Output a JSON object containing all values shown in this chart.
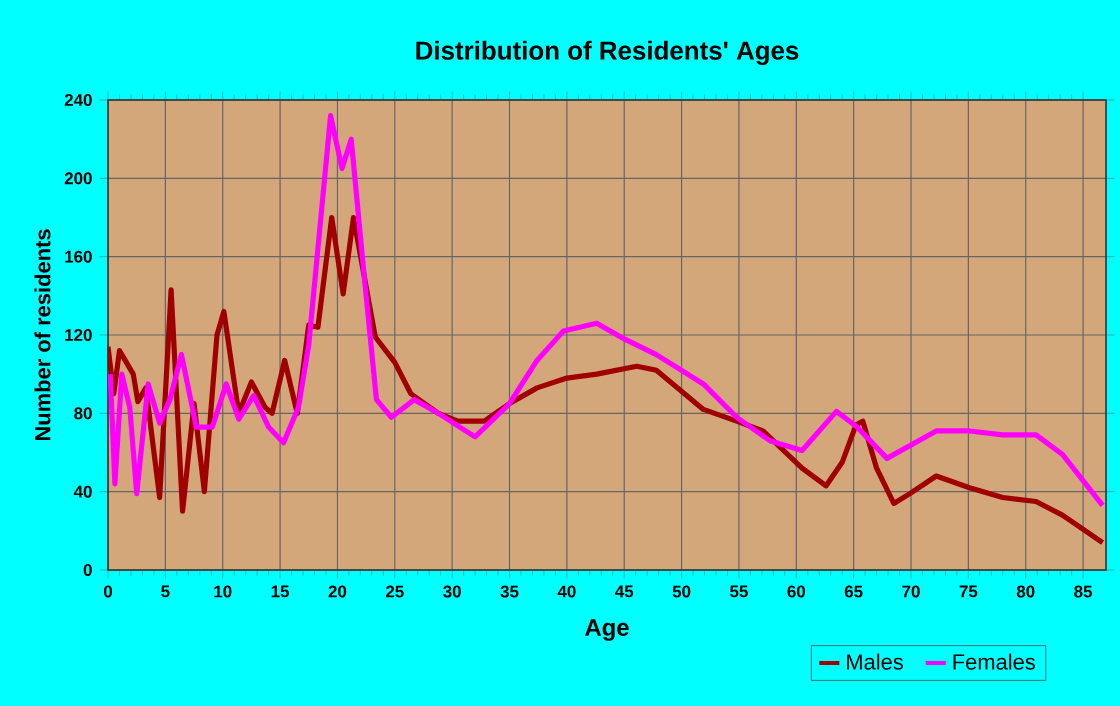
{
  "chart_data": {
    "type": "line",
    "title": "Distribution of Residents' Ages",
    "xlabel": "Age",
    "ylabel": "Number of residents",
    "xlim": [
      0,
      87
    ],
    "xticks": [
      0,
      5,
      10,
      15,
      20,
      25,
      30,
      35,
      40,
      45,
      50,
      55,
      60,
      65,
      70,
      75,
      80,
      85
    ],
    "ylim": [
      0,
      240
    ],
    "yticks": [
      0,
      40,
      80,
      120,
      160,
      200,
      240
    ],
    "grid": true,
    "legend": "bottom right",
    "marker": "none",
    "line_style": "solid",
    "series": [
      {
        "name": "Males",
        "color": "#a00000",
        "x": [
          0,
          0.5,
          1,
          2.2,
          2.6,
          3.3,
          4.5,
          5.5,
          6.5,
          7.5,
          8.4,
          9.5,
          10.1,
          11.4,
          12.5,
          13.7,
          14.3,
          15.4,
          16.5,
          17.5,
          18.3,
          19.5,
          20.5,
          21.4,
          23.3,
          25,
          26.4,
          28.8,
          30.5,
          32.8,
          35,
          37.4,
          40,
          42.6,
          46.1,
          47.8,
          51.9,
          54.8,
          57.1,
          60.5,
          62.6,
          64,
          65.2,
          65.8,
          67,
          68.5,
          69.9,
          72.2,
          75.1,
          78,
          80.9,
          83.2,
          86.7
        ],
        "values": [
          114,
          90,
          112,
          100,
          86,
          93,
          37,
          143,
          30,
          85,
          40,
          120,
          132,
          80,
          96,
          83,
          80,
          107,
          80,
          125,
          124,
          180,
          141,
          180,
          119,
          106,
          90,
          80,
          76,
          76,
          85,
          93,
          98,
          100,
          104,
          102,
          82,
          76,
          71,
          52,
          43,
          55,
          74,
          76,
          52,
          34,
          39,
          48,
          42,
          37,
          35,
          28,
          14
        ]
      },
      {
        "name": "Females",
        "color": "#ff00ff",
        "x": [
          0.2,
          0.6,
          1.2,
          1.9,
          2.5,
          3.5,
          4.5,
          5.4,
          6.4,
          7.7,
          9.1,
          10.3,
          11.4,
          12.7,
          14,
          15.3,
          16.6,
          17.5,
          19.4,
          20.4,
          21.2,
          22.4,
          23.4,
          24.7,
          26.7,
          28.8,
          32,
          35,
          37.4,
          39.7,
          42.6,
          45,
          47.8,
          51.9,
          54.8,
          57.7,
          60.5,
          63.5,
          65.3,
          67.9,
          72.2,
          75.1,
          78,
          80.9,
          83.2,
          86.7
        ],
        "values": [
          100,
          44,
          100,
          83,
          39,
          95,
          75,
          87,
          110,
          73,
          73,
          95,
          77,
          89,
          73,
          65,
          83,
          115,
          232,
          205,
          220,
          146,
          87,
          78,
          87,
          80,
          68,
          85,
          107,
          122,
          126,
          118,
          110,
          95,
          78,
          66,
          61,
          81,
          73,
          57,
          71,
          71,
          69,
          69,
          59,
          33
        ]
      }
    ]
  }
}
